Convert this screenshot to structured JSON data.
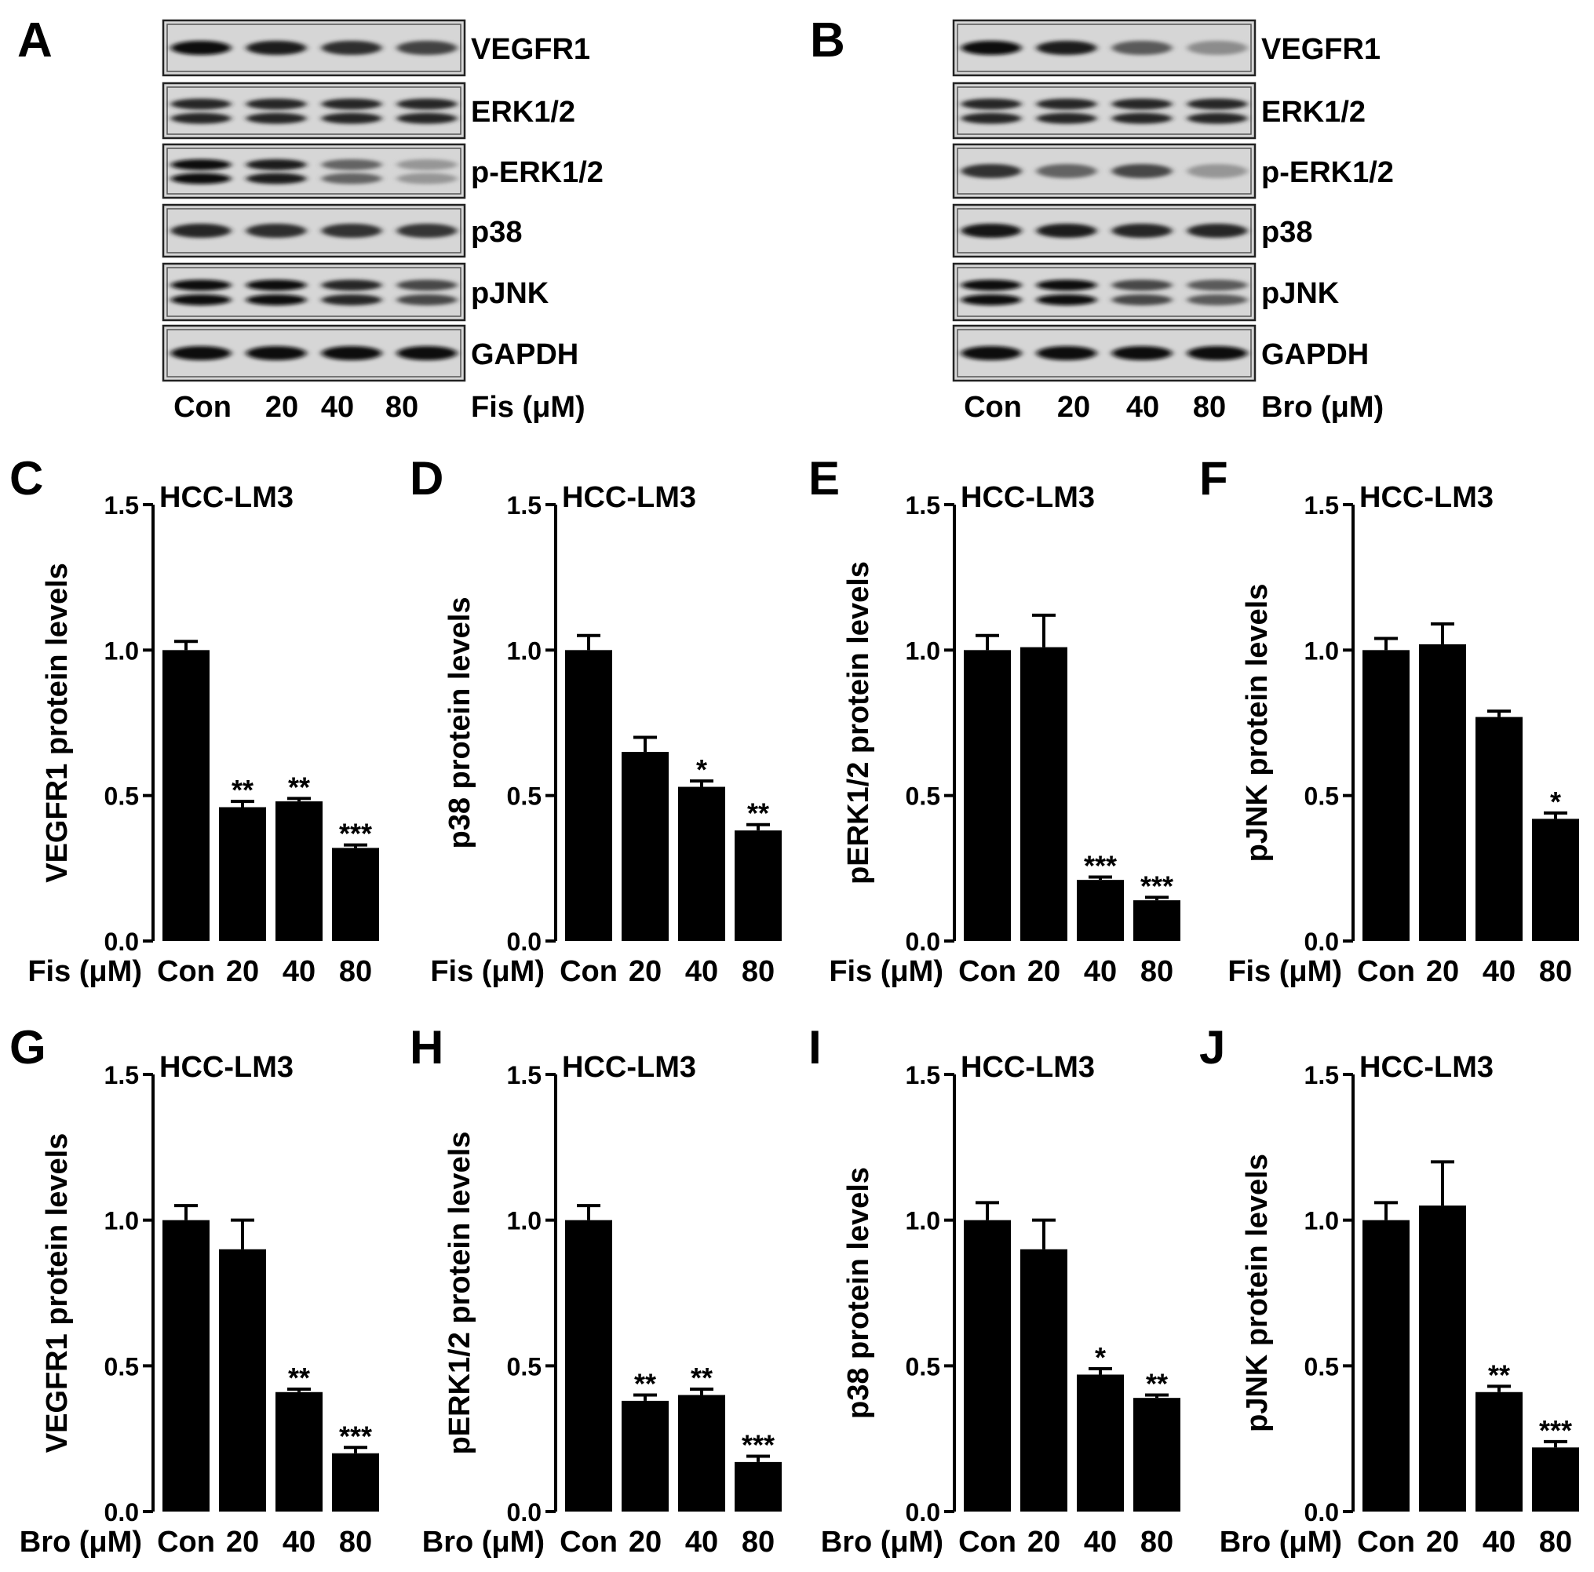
{
  "blots": [
    {
      "panel": "A",
      "labels": [
        "VEGFR1",
        "ERK1/2",
        "p-ERK1/2",
        "p38",
        "pJNK",
        "GAPDH"
      ],
      "lanes": [
        "Con",
        "20",
        "40",
        "80"
      ],
      "treatment": "Fis (μM)",
      "bands": [
        {
          "rows": 1,
          "intensity": [
            1.0,
            0.9,
            0.82,
            0.72
          ]
        },
        {
          "rows": 2,
          "intensity": [
            0.85,
            0.85,
            0.85,
            0.85
          ]
        },
        {
          "rows": 2,
          "intensity": [
            1.0,
            0.9,
            0.55,
            0.3
          ]
        },
        {
          "rows": 1,
          "intensity": [
            0.85,
            0.82,
            0.8,
            0.78
          ]
        },
        {
          "rows": 2,
          "intensity": [
            1.0,
            1.0,
            0.85,
            0.7
          ]
        },
        {
          "rows": 1,
          "intensity": [
            1.0,
            1.0,
            1.0,
            1.0
          ]
        }
      ]
    },
    {
      "panel": "B",
      "labels": [
        "VEGFR1",
        "ERK1/2",
        "p-ERK1/2",
        "p38",
        "pJNK",
        "GAPDH"
      ],
      "lanes": [
        "Con",
        "20",
        "40",
        "80"
      ],
      "treatment": "Bro (μM)",
      "bands": [
        {
          "rows": 1,
          "intensity": [
            1.0,
            0.9,
            0.6,
            0.35
          ]
        },
        {
          "rows": 2,
          "intensity": [
            0.85,
            0.85,
            0.85,
            0.85
          ]
        },
        {
          "rows": 1,
          "intensity": [
            0.8,
            0.55,
            0.7,
            0.3
          ]
        },
        {
          "rows": 1,
          "intensity": [
            0.95,
            0.92,
            0.85,
            0.85
          ]
        },
        {
          "rows": 2,
          "intensity": [
            1.0,
            1.0,
            0.7,
            0.6
          ]
        },
        {
          "rows": 1,
          "intensity": [
            1.0,
            1.0,
            1.0,
            1.0
          ]
        }
      ]
    }
  ],
  "chart_data": [
    {
      "panel": "C",
      "type": "bar",
      "title": "HCC-LM3",
      "ylabel": "VEGFR1 protein levels",
      "xlabel": "Fis (μM)",
      "categories": [
        "Con",
        "20",
        "40",
        "80"
      ],
      "values": [
        1.0,
        0.46,
        0.48,
        0.32
      ],
      "errors": [
        0.03,
        0.02,
        0.01,
        0.01
      ],
      "significance": [
        "",
        "**",
        "**",
        "***"
      ],
      "ylim": [
        0,
        1.5
      ],
      "yticks": [
        "0.0",
        "0.5",
        "1.0",
        "1.5"
      ]
    },
    {
      "panel": "D",
      "type": "bar",
      "title": "HCC-LM3",
      "ylabel": "p38 protein levels",
      "xlabel": "Fis (μM)",
      "categories": [
        "Con",
        "20",
        "40",
        "80"
      ],
      "values": [
        1.0,
        0.65,
        0.53,
        0.38
      ],
      "errors": [
        0.05,
        0.05,
        0.02,
        0.02
      ],
      "significance": [
        "",
        "",
        "*",
        "**"
      ],
      "ylim": [
        0,
        1.5
      ],
      "yticks": [
        "0.0",
        "0.5",
        "1.0",
        "1.5"
      ]
    },
    {
      "panel": "E",
      "type": "bar",
      "title": "HCC-LM3",
      "ylabel": "pERK1/2 protein levels",
      "xlabel": "Fis (μM)",
      "categories": [
        "Con",
        "20",
        "40",
        "80"
      ],
      "values": [
        1.0,
        1.01,
        0.21,
        0.14
      ],
      "errors": [
        0.05,
        0.11,
        0.01,
        0.01
      ],
      "significance": [
        "",
        "",
        "***",
        "***"
      ],
      "ylim": [
        0,
        1.5
      ],
      "yticks": [
        "0.0",
        "0.5",
        "1.0",
        "1.5"
      ]
    },
    {
      "panel": "F",
      "type": "bar",
      "title": "HCC-LM3",
      "ylabel": "pJNK protein levels",
      "xlabel": "Fis (μM)",
      "categories": [
        "Con",
        "20",
        "40",
        "80"
      ],
      "values": [
        1.0,
        1.02,
        0.77,
        0.42
      ],
      "errors": [
        0.04,
        0.07,
        0.02,
        0.02
      ],
      "significance": [
        "",
        "",
        "",
        "*"
      ],
      "ylim": [
        0,
        1.5
      ],
      "yticks": [
        "0.0",
        "0.5",
        "1.0",
        "1.5"
      ]
    },
    {
      "panel": "G",
      "type": "bar",
      "title": "HCC-LM3",
      "ylabel": "VEGFR1 protein levels",
      "xlabel": "Bro (μM)",
      "categories": [
        "Con",
        "20",
        "40",
        "80"
      ],
      "values": [
        1.0,
        0.9,
        0.41,
        0.2
      ],
      "errors": [
        0.05,
        0.1,
        0.01,
        0.02
      ],
      "significance": [
        "",
        "",
        "**",
        "***"
      ],
      "ylim": [
        0,
        1.5
      ],
      "yticks": [
        "0.0",
        "0.5",
        "1.0",
        "1.5"
      ]
    },
    {
      "panel": "H",
      "type": "bar",
      "title": "HCC-LM3",
      "ylabel": "pERK1/2 protein levels",
      "xlabel": "Bro (μM)",
      "categories": [
        "Con",
        "20",
        "40",
        "80"
      ],
      "values": [
        1.0,
        0.38,
        0.4,
        0.17
      ],
      "errors": [
        0.05,
        0.02,
        0.02,
        0.02
      ],
      "significance": [
        "",
        "**",
        "**",
        "***"
      ],
      "ylim": [
        0,
        1.5
      ],
      "yticks": [
        "0.0",
        "0.5",
        "1.0",
        "1.5"
      ]
    },
    {
      "panel": "I",
      "type": "bar",
      "title": "HCC-LM3",
      "ylabel": "p38 protein levels",
      "xlabel": "Bro (μM)",
      "categories": [
        "Con",
        "20",
        "40",
        "80"
      ],
      "values": [
        1.0,
        0.9,
        0.47,
        0.39
      ],
      "errors": [
        0.06,
        0.1,
        0.02,
        0.01
      ],
      "significance": [
        "",
        "",
        "*",
        "**"
      ],
      "ylim": [
        0,
        1.5
      ],
      "yticks": [
        "0.0",
        "0.5",
        "1.0",
        "1.5"
      ]
    },
    {
      "panel": "J",
      "type": "bar",
      "title": "HCC-LM3",
      "ylabel": "pJNK protein levels",
      "xlabel": "Bro (μM)",
      "categories": [
        "Con",
        "20",
        "40",
        "80"
      ],
      "values": [
        1.0,
        1.05,
        0.41,
        0.22
      ],
      "errors": [
        0.06,
        0.15,
        0.02,
        0.02
      ],
      "significance": [
        "",
        "",
        "**",
        "***"
      ],
      "ylim": [
        0,
        1.5
      ],
      "yticks": [
        "0.0",
        "0.5",
        "1.0",
        "1.5"
      ]
    }
  ]
}
